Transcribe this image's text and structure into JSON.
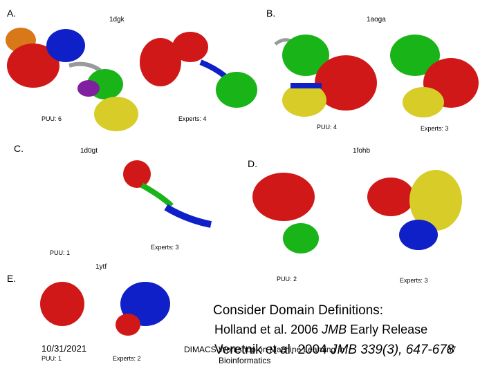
{
  "panels": {
    "a": {
      "letter": "A.",
      "pdb": "1dgk",
      "puu": "PUU: 6",
      "experts": "Experts: 4"
    },
    "b": {
      "letter": "B.",
      "pdb": "1aoga",
      "puu": "PUU: 4",
      "experts": "Experts: 3"
    },
    "c": {
      "letter": "C.",
      "pdb": "1d0gt",
      "puu": "PUU: 1",
      "experts": "Experts: 3"
    },
    "d": {
      "letter": "D.",
      "pdb": "1fohb",
      "puu": "PUU: 2",
      "experts": "Experts: 3"
    },
    "e": {
      "letter": "E.",
      "pdb": "1ytf",
      "puu": "PUU: 1",
      "experts": "Experts: 2"
    }
  },
  "text": {
    "heading": "Consider Domain Definitions:",
    "ref1_pre": "Holland et al. 2006 ",
    "ref1_journal": "JMB",
    "ref1_post": " Early Release",
    "ref2_pre": "Veretnik et al. 2004 ",
    "ref2_rest": "JMB 339(3), 647-678"
  },
  "footer": {
    "date": "10/31/2021",
    "event": "DIMACS Workshop on Machine Learning in",
    "subtitle": "Bioinformatics",
    "page": "67"
  },
  "colors": {
    "red": "#d01818",
    "blue": "#1020c8",
    "green": "#18b418",
    "yellow": "#d8cc28",
    "orange": "#d87818",
    "purple": "#8020a0",
    "gray": "#9a9a9a"
  }
}
